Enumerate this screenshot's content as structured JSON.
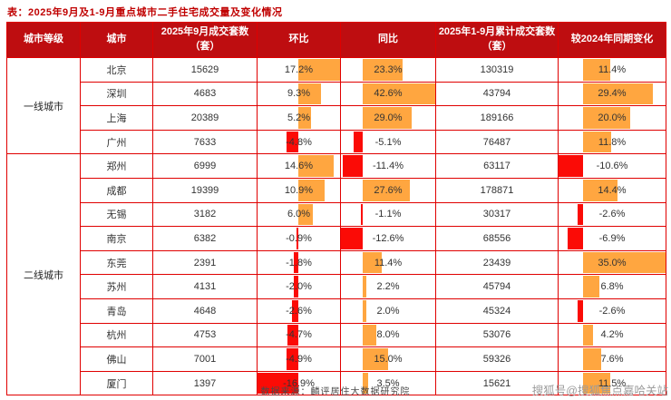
{
  "title": "表：2025年9月及1-9月重点城市二手住宅成交量及变化情况",
  "source": "数据来源：麟评居住大数据研究院",
  "watermark": "搜狐号@搜狐焦点嘉哈关站",
  "colors": {
    "title": "#c00000",
    "header_bg": "#be0d10",
    "border": "#e00000",
    "positive_bar": "#ffa640",
    "negative_bar": "#fb0b06"
  },
  "chart_data": {
    "type": "table",
    "title": "2025年9月及1-9月重点城市二手住宅成交量及变化情况",
    "columns": [
      "城市等级",
      "城市",
      "2025年9月成交套数（套）",
      "环比",
      "同比",
      "2025年1-9月累计成交套数（套）",
      "较2024年同期变化"
    ],
    "bar_columns": [
      "mom",
      "yoy",
      "chg"
    ],
    "rows": [
      {
        "tier": "一线城市",
        "tier_span": 4,
        "city": "北京",
        "sales_sep": "15629",
        "mom": "17.2%",
        "yoy": "23.3%",
        "sales_cum": "130319",
        "chg": "11.4%"
      },
      {
        "city": "深圳",
        "sales_sep": "4683",
        "mom": "9.3%",
        "yoy": "42.6%",
        "sales_cum": "43794",
        "chg": "29.4%"
      },
      {
        "city": "上海",
        "sales_sep": "20389",
        "mom": "5.2%",
        "yoy": "29.0%",
        "sales_cum": "189166",
        "chg": "20.0%"
      },
      {
        "city": "广州",
        "sales_sep": "7633",
        "mom": "-4.8%",
        "yoy": "-5.1%",
        "sales_cum": "76487",
        "chg": "11.8%"
      },
      {
        "tier": "二线城市",
        "tier_span": 10,
        "city": "郑州",
        "sales_sep": "6999",
        "mom": "14.6%",
        "yoy": "-11.4%",
        "sales_cum": "63117",
        "chg": "-10.6%"
      },
      {
        "city": "成都",
        "sales_sep": "19399",
        "mom": "10.9%",
        "yoy": "27.6%",
        "sales_cum": "178871",
        "chg": "14.4%"
      },
      {
        "city": "无锡",
        "sales_sep": "3182",
        "mom": "6.0%",
        "yoy": "-1.1%",
        "sales_cum": "30317",
        "chg": "-2.6%"
      },
      {
        "city": "南京",
        "sales_sep": "6382",
        "mom": "-0.9%",
        "yoy": "-12.6%",
        "sales_cum": "68556",
        "chg": "-6.9%"
      },
      {
        "city": "东莞",
        "sales_sep": "2391",
        "mom": "-1.8%",
        "yoy": "11.4%",
        "sales_cum": "23439",
        "chg": "35.0%"
      },
      {
        "city": "苏州",
        "sales_sep": "4131",
        "mom": "-2.0%",
        "yoy": "2.2%",
        "sales_cum": "45794",
        "chg": "6.8%"
      },
      {
        "city": "青岛",
        "sales_sep": "4648",
        "mom": "-2.6%",
        "yoy": "2.0%",
        "sales_cum": "45324",
        "chg": "-2.6%"
      },
      {
        "city": "杭州",
        "sales_sep": "4753",
        "mom": "-4.7%",
        "yoy": "8.0%",
        "sales_cum": "53076",
        "chg": "4.2%"
      },
      {
        "city": "佛山",
        "sales_sep": "7001",
        "mom": "-4.9%",
        "yoy": "15.0%",
        "sales_cum": "59326",
        "chg": "7.6%"
      },
      {
        "city": "厦门",
        "sales_sep": "1397",
        "mom": "-16.9%",
        "yoy": "3.5%",
        "sales_cum": "15621",
        "chg": "11.5%"
      }
    ]
  }
}
